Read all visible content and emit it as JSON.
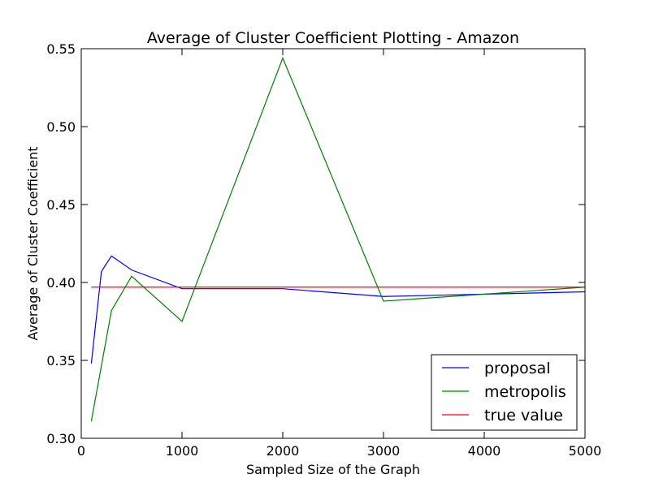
{
  "chart_data": {
    "type": "line",
    "title": "Average of Cluster Coefficient Plotting - Amazon",
    "xlabel": "Sampled Size of the Graph",
    "ylabel": "Average of Cluster Coefficient",
    "xlim": [
      0,
      5000
    ],
    "ylim": [
      0.3,
      0.55
    ],
    "xticks": [
      0,
      1000,
      2000,
      3000,
      4000,
      5000
    ],
    "xtick_labels": [
      "0",
      "1000",
      "2000",
      "3000",
      "4000",
      "5000"
    ],
    "yticks": [
      0.3,
      0.35,
      0.4,
      0.45,
      0.5,
      0.55
    ],
    "ytick_labels": [
      "0.30",
      "0.35",
      "0.40",
      "0.45",
      "0.50",
      "0.55"
    ],
    "grid": false,
    "legend_position": "bottom-right",
    "series": [
      {
        "name": "proposal",
        "color": "#0000ff",
        "x": [
          100,
          200,
          300,
          500,
          1000,
          2000,
          3000,
          5000
        ],
        "y": [
          0.348,
          0.407,
          0.417,
          0.408,
          0.396,
          0.396,
          0.391,
          0.394
        ]
      },
      {
        "name": "metropolis",
        "color": "#008000",
        "x": [
          100,
          300,
          500,
          1000,
          2000,
          3000,
          5000
        ],
        "y": [
          0.311,
          0.382,
          0.404,
          0.375,
          0.544,
          0.388,
          0.397
        ]
      },
      {
        "name": "true value",
        "color": "#ff0000",
        "x": [
          100,
          5000
        ],
        "y": [
          0.397,
          0.397
        ]
      }
    ]
  }
}
